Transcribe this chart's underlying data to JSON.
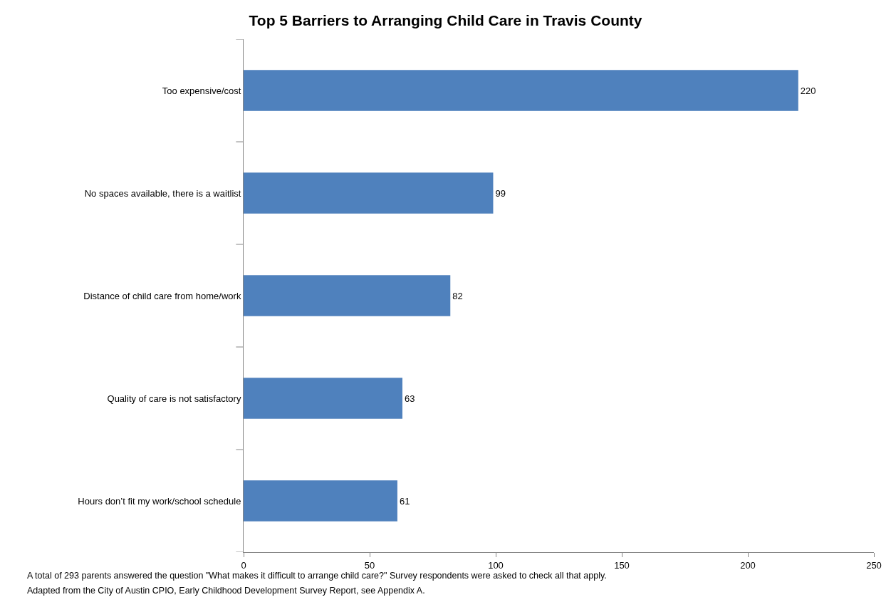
{
  "chart_data": {
    "type": "bar",
    "orientation": "horizontal",
    "title": "Top 5 Barriers to Arranging Child Care in Travis County",
    "categories": [
      "Too expensive/cost",
      "No spaces available, there is a waitlist",
      "Distance of child care from home/work",
      "Quality of care is not satisfactory",
      "Hours don’t fit my work/school schedule"
    ],
    "values": [
      220,
      99,
      82,
      63,
      61
    ],
    "color": "#4f81bd",
    "data_labels": true,
    "xlim": [
      0,
      250
    ],
    "xticks": [
      0,
      50,
      100,
      150,
      200,
      250
    ],
    "legend": false,
    "annotations": [
      "A total of 293 parents answered the question \"What makes it difficult to arrange child care?\" Survey respondents were asked to check all that apply.",
      "Adapted from the City of Austin CPIO, Early Childhood Development Survey Report, see Appendix A."
    ]
  }
}
